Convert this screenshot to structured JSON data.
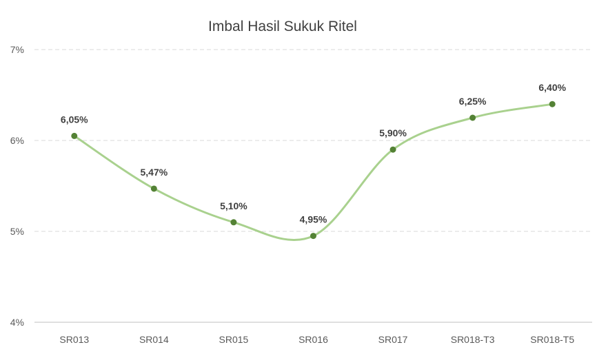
{
  "chart_data": {
    "type": "line",
    "title": "Imbal Hasil Sukuk Ritel",
    "xlabel": "",
    "ylabel": "",
    "categories": [
      "SR013",
      "SR014",
      "SR015",
      "SR016",
      "SR017",
      "SR018-T3",
      "SR018-T5"
    ],
    "series": [
      {
        "values": [
          6.05,
          5.47,
          5.1,
          4.95,
          5.9,
          6.25,
          6.4
        ],
        "data_labels": [
          "6,05%",
          "5,47%",
          "5,10%",
          "4,95%",
          "5,90%",
          "6,25%",
          "6,40%"
        ]
      }
    ],
    "ylim": [
      4,
      7
    ],
    "yticks": [
      4,
      5,
      6,
      7
    ],
    "ytick_labels": [
      "4%",
      "5%",
      "6%",
      "7%"
    ],
    "grid": true,
    "smooth": true,
    "colors": {
      "line": "#a9d18e",
      "marker": "#548235",
      "grid": "#d9d9d9",
      "axis": "#bfbfbf"
    }
  }
}
